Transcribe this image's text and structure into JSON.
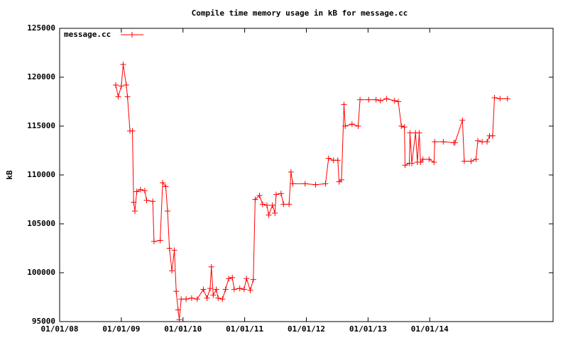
{
  "chart_data": {
    "type": "line",
    "title": "Compile time memory usage in kB for message.cc",
    "y_label": "kB",
    "x": [
      2008.91,
      2008.95,
      2009.0,
      2009.03,
      2009.08,
      2009.1,
      2009.14,
      2009.18,
      2009.2,
      2009.22,
      2009.25,
      2009.31,
      2009.38,
      2009.41,
      2009.51,
      2009.53,
      2009.63,
      2009.67,
      2009.72,
      2009.75,
      2009.78,
      2009.82,
      2009.86,
      2009.89,
      2009.92,
      2009.94,
      2009.97,
      2010.05,
      2010.14,
      2010.23,
      2010.33,
      2010.39,
      2010.44,
      2010.46,
      2010.49,
      2010.54,
      2010.57,
      2010.64,
      2010.69,
      2010.74,
      2010.8,
      2010.83,
      2010.92,
      2010.99,
      2011.03,
      2011.09,
      2011.14,
      2011.17,
      2011.24,
      2011.29,
      2011.36,
      2011.39,
      2011.45,
      2011.49,
      2011.51,
      2011.59,
      2011.63,
      2011.72,
      2011.75,
      2011.78,
      2011.98,
      2012.15,
      2012.31,
      2012.36,
      2012.44,
      2012.51,
      2012.53,
      2012.57,
      2012.61,
      2012.63,
      2012.74,
      2012.84,
      2012.87,
      2013.01,
      2013.13,
      2013.2,
      2013.3,
      2013.43,
      2013.49,
      2013.54,
      2013.59,
      2013.6,
      2013.67,
      2013.68,
      2013.71,
      2013.77,
      2013.8,
      2013.83,
      2013.85,
      2013.89,
      2013.99,
      2014.07,
      2014.08,
      2014.22,
      2014.39,
      2014.41,
      2014.53,
      2014.56,
      2014.67,
      2014.75,
      2014.78,
      2014.85,
      2014.93,
      2014.97,
      2015.02,
      2015.05,
      2015.14,
      2015.26
    ],
    "series": [
      {
        "name": "message.cc",
        "color": "#ff0000",
        "values": [
          119200,
          118000,
          119100,
          121300,
          119200,
          118000,
          114500,
          114500,
          107200,
          106300,
          108300,
          108500,
          108400,
          107400,
          107300,
          103200,
          103300,
          109200,
          108800,
          106300,
          102500,
          100200,
          102300,
          98100,
          96200,
          95200,
          97300,
          97300,
          97400,
          97300,
          98300,
          97400,
          98400,
          100600,
          97700,
          98300,
          97400,
          97300,
          98300,
          99400,
          99500,
          98300,
          98400,
          98300,
          99400,
          98200,
          99300,
          107500,
          107900,
          107000,
          106900,
          105900,
          106900,
          106100,
          108000,
          108100,
          107000,
          107000,
          110300,
          109100,
          109100,
          109000,
          109100,
          111700,
          111500,
          111500,
          109300,
          109500,
          117200,
          115000,
          115200,
          115000,
          117700,
          117700,
          117700,
          117600,
          117800,
          117600,
          117500,
          115000,
          114900,
          111000,
          111200,
          114300,
          111200,
          114300,
          111300,
          114300,
          111300,
          111600,
          111600,
          111300,
          113400,
          113400,
          113300,
          113300,
          115600,
          111400,
          111400,
          111600,
          113500,
          113400,
          113400,
          114000,
          114000,
          117900,
          117800,
          117800
        ]
      }
    ],
    "xlim": [
      2008,
      2016
    ],
    "xticks": [
      {
        "value": 2008,
        "label": "01/01/08"
      },
      {
        "value": 2009,
        "label": "01/01/09"
      },
      {
        "value": 2010,
        "label": "01/01/10"
      },
      {
        "value": 2011,
        "label": "01/01/11"
      },
      {
        "value": 2012,
        "label": "01/01/12"
      },
      {
        "value": 2013,
        "label": "01/01/13"
      },
      {
        "value": 2014,
        "label": "01/01/14"
      }
    ],
    "ylim": [
      95000,
      125000
    ],
    "yticks": [
      95000,
      100000,
      105000,
      110000,
      115000,
      120000,
      125000
    ],
    "legend": "top-left",
    "grid": false
  }
}
